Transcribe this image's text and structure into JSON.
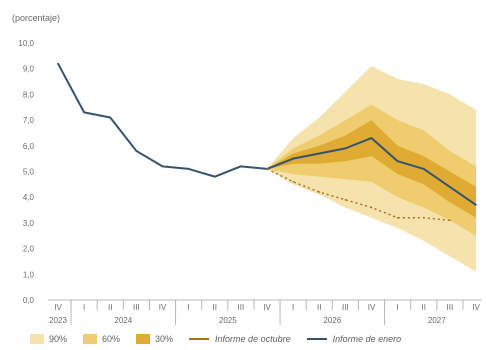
{
  "chart_data": {
    "type": "line",
    "title": "",
    "unit_label": "(porcentaje)",
    "ylim": [
      0,
      10
    ],
    "y_ticks": [
      "0,0",
      "1,0",
      "2,0",
      "3,0",
      "4,0",
      "5,0",
      "6,0",
      "7,0",
      "8,0",
      "9,0",
      "10,0"
    ],
    "x_quarters": [
      "IV",
      "I",
      "II",
      "III",
      "IV",
      "I",
      "II",
      "III",
      "IV",
      "I",
      "II",
      "III",
      "IV",
      "I",
      "II",
      "III",
      "IV"
    ],
    "x_years": [
      {
        "label": "2023",
        "from": 0,
        "to": 0
      },
      {
        "label": "2024",
        "from": 1,
        "to": 4
      },
      {
        "label": "2025",
        "from": 5,
        "to": 8
      },
      {
        "label": "2026",
        "from": 9,
        "to": 12
      },
      {
        "label": "2027",
        "from": 13,
        "to": 16
      }
    ],
    "series": [
      {
        "name": "Informe de enero",
        "style": "solid",
        "points": [
          [
            0,
            9.2
          ],
          [
            1,
            7.3
          ],
          [
            2,
            7.1
          ],
          [
            3,
            5.8
          ],
          [
            4,
            5.2
          ],
          [
            5,
            5.1
          ],
          [
            6,
            4.8
          ],
          [
            7,
            5.2
          ],
          [
            8,
            5.1
          ],
          [
            9,
            5.5
          ],
          [
            10,
            5.7
          ],
          [
            11,
            5.9
          ],
          [
            12,
            6.3
          ],
          [
            13,
            5.4
          ],
          [
            14,
            5.1
          ],
          [
            15,
            4.4
          ],
          [
            16,
            3.7
          ]
        ]
      },
      {
        "name": "Informe de octubre",
        "style": "dotted",
        "points": [
          [
            8,
            5.1
          ],
          [
            9,
            4.6
          ],
          [
            10,
            4.2
          ],
          [
            11,
            3.9
          ],
          [
            12,
            3.6
          ],
          [
            13,
            3.2
          ],
          [
            14,
            3.2
          ],
          [
            15,
            3.1
          ]
        ]
      }
    ],
    "fan_bands": [
      {
        "name": "90%",
        "start": 8,
        "lower": [
          5.1,
          4.5,
          4.1,
          3.6,
          3.2,
          2.8,
          2.3,
          1.7,
          1.1
        ],
        "upper": [
          5.1,
          6.3,
          7.1,
          8.1,
          9.1,
          8.6,
          8.4,
          8.0,
          7.4
        ]
      },
      {
        "name": "60%",
        "start": 8,
        "lower": [
          5.1,
          4.9,
          4.8,
          4.7,
          4.6,
          4.0,
          3.6,
          3.1,
          2.5
        ],
        "upper": [
          5.1,
          5.9,
          6.4,
          7.0,
          7.6,
          7.0,
          6.6,
          5.8,
          5.2
        ]
      },
      {
        "name": "30%",
        "start": 8,
        "lower": [
          5.1,
          5.3,
          5.3,
          5.4,
          5.6,
          4.9,
          4.5,
          3.8,
          3.2
        ],
        "upper": [
          5.1,
          5.7,
          6.0,
          6.4,
          7.0,
          6.0,
          5.6,
          5.0,
          4.4
        ]
      }
    ],
    "colors": {
      "band_90": "#f5e2ac",
      "band_60": "#efcd6f",
      "band_30": "#e0ab33",
      "central": "#9a6a0a",
      "enero": "#33536e",
      "octubre": "#b0701a",
      "axis": "#b8b8b8"
    }
  },
  "legend": {
    "items": [
      {
        "label": "90%",
        "kind": "swatch",
        "color": "#f5e2ac"
      },
      {
        "label": "60%",
        "kind": "swatch",
        "color": "#efcd6f"
      },
      {
        "label": "30%",
        "kind": "swatch",
        "color": "#e0ab33"
      },
      {
        "label": "Informe de octubre",
        "kind": "line",
        "color": "#b0701a"
      },
      {
        "label": "Informe de enero",
        "kind": "line",
        "color": "#33536e"
      }
    ]
  }
}
